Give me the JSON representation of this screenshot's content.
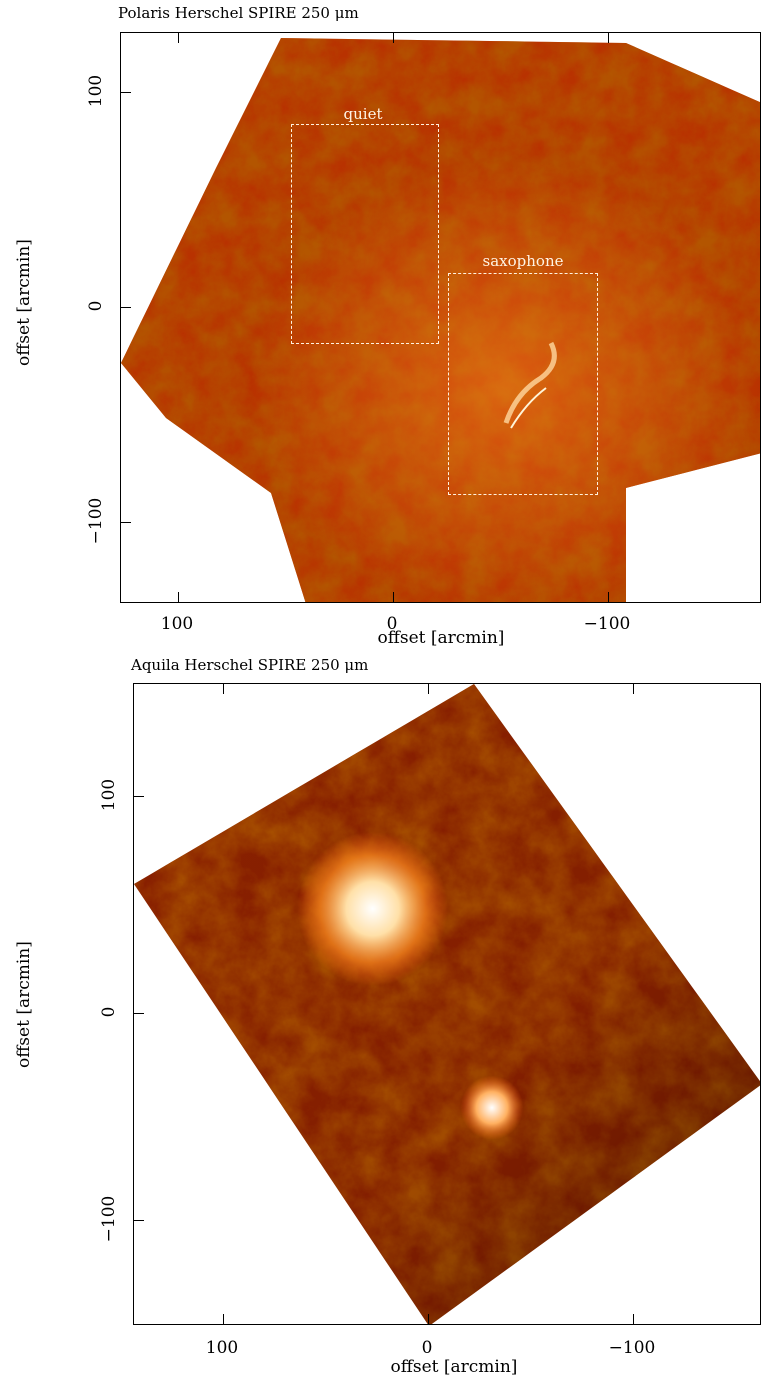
{
  "panels": [
    {
      "title": "Polaris Herschel SPIRE 250 μm",
      "xlabel": "offset [arcmin]",
      "ylabel": "offset [arcmin]",
      "x_ticks": [
        "100",
        "0",
        "−100"
      ],
      "y_ticks": [
        "100",
        "0",
        "−100"
      ],
      "regions": [
        {
          "label": "quiet"
        },
        {
          "label": "saxophone"
        }
      ],
      "colormap": [
        "#2a0600",
        "#7a1800",
        "#c83a00",
        "#ff7a10",
        "#ffd090",
        "#ffffff"
      ]
    },
    {
      "title": "Aquila Herschel SPIRE 250 μm",
      "xlabel": "offset [arcmin]",
      "ylabel": "offset [arcmin]",
      "x_ticks": [
        "100",
        "0",
        "−100"
      ],
      "y_ticks": [
        "100",
        "0",
        "−100"
      ],
      "colormap": [
        "#1a0300",
        "#5a1000",
        "#a82c00",
        "#ff7010",
        "#ffd090",
        "#ffffff"
      ]
    }
  ]
}
